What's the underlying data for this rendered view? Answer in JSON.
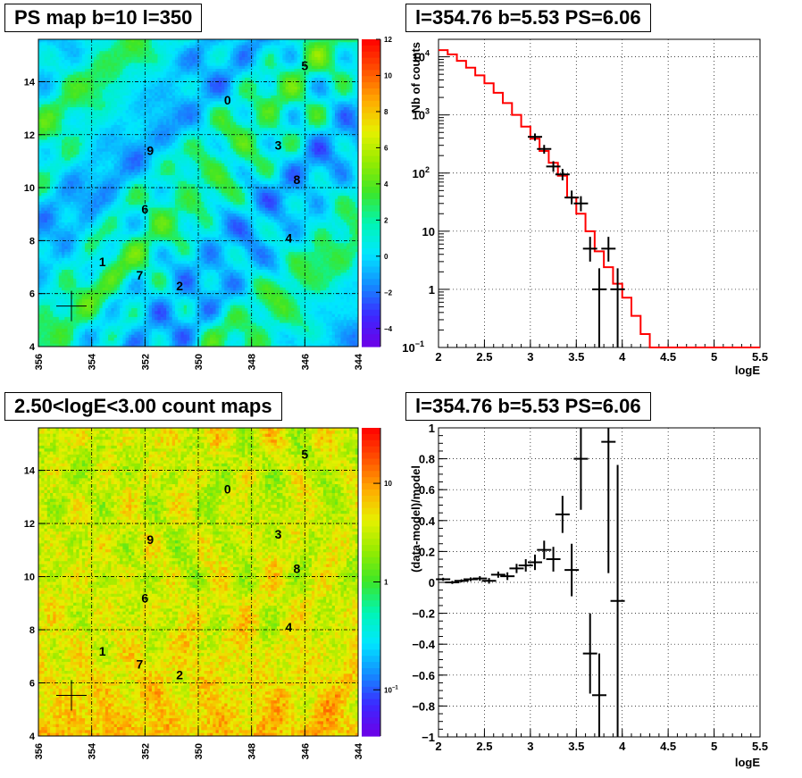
{
  "titles": {
    "ps_map": "PS map b=10 l=350",
    "spectrum": "l=354.76 b=5.53 PS=6.06",
    "count_map": "2.50<logE<3.00 count maps",
    "residual": "l=354.76 b=5.53 PS=6.06"
  },
  "chart_data": [
    {
      "id": "ps_map",
      "type": "heatmap",
      "title": "PS map b=10 l=350",
      "x_ticks": [
        "356",
        "354",
        "352",
        "350",
        "348",
        "346",
        "344"
      ],
      "y_ticks": [
        "4",
        "6",
        "8",
        "10",
        "12",
        "14"
      ],
      "xlim": [
        356,
        344
      ],
      "ylim": [
        4,
        15.6
      ],
      "z_range": [
        -5,
        12
      ],
      "z_ticks": [
        "12",
        "10",
        "8",
        "6",
        "4",
        "2",
        "0",
        "−2",
        "−4"
      ],
      "grid": true,
      "source_labels": [
        {
          "label": "0",
          "l": 348.9,
          "b": 13.3
        },
        {
          "label": "1",
          "l": 353.6,
          "b": 7.2
        },
        {
          "label": "2",
          "l": 350.7,
          "b": 6.3
        },
        {
          "label": "3",
          "l": 347.0,
          "b": 11.6
        },
        {
          "label": "4",
          "l": 346.6,
          "b": 8.1
        },
        {
          "label": "5",
          "l": 346.0,
          "b": 14.6
        },
        {
          "label": "6",
          "l": 352.0,
          "b": 9.2
        },
        {
          "label": "7",
          "l": 352.2,
          "b": 6.7
        },
        {
          "label": "8",
          "l": 346.3,
          "b": 10.3
        },
        {
          "label": "9",
          "l": 351.8,
          "b": 11.4
        }
      ],
      "marker": {
        "l": 354.76,
        "b": 5.53
      }
    },
    {
      "id": "spectrum",
      "type": "line",
      "title": "l=354.76 b=5.53 PS=6.06",
      "xlabel": "logE",
      "ylabel": "Nb of counts",
      "xlim": [
        2,
        5.5
      ],
      "ylim": [
        0.1,
        20000
      ],
      "yscale": "log",
      "x_ticks": [
        "2",
        "2.5",
        "3",
        "3.5",
        "4",
        "4.5",
        "5",
        "5.5"
      ],
      "y_ticks": [
        {
          "v": 0.1,
          "label": "10",
          "exp": "−1"
        },
        {
          "v": 1,
          "label": "1",
          "exp": ""
        },
        {
          "v": 10,
          "label": "10",
          "exp": ""
        },
        {
          "v": 100,
          "label": "10",
          "exp": "2"
        },
        {
          "v": 1000,
          "label": "10",
          "exp": "3"
        },
        {
          "v": 10000,
          "label": "10",
          "exp": "4"
        }
      ],
      "grid": true,
      "series": [
        {
          "name": "model",
          "kind": "step",
          "bin_edges": [
            2.0,
            2.1,
            2.2,
            2.3,
            2.4,
            2.5,
            2.6,
            2.7,
            2.8,
            2.9,
            3.0,
            3.1,
            3.2,
            3.3,
            3.4,
            3.5,
            3.6,
            3.7,
            3.8,
            3.9,
            4.0,
            4.1,
            4.2,
            4.3,
            4.4,
            4.5,
            4.6,
            4.7,
            4.8,
            4.9,
            5.0,
            5.1,
            5.2,
            5.3,
            5.4,
            5.5
          ],
          "values": [
            13000,
            11000,
            8500,
            6500,
            4800,
            3500,
            2400,
            1600,
            1000,
            630,
            390,
            240,
            150,
            90,
            38,
            20,
            10,
            4.5,
            2.4,
            1.25,
            0.72,
            0.35,
            0.17,
            0.1,
            0.1,
            0.1,
            0.1,
            0.1,
            0.1,
            0.1,
            0.1,
            0.1,
            0.1,
            0.1,
            0.1
          ]
        },
        {
          "name": "data",
          "kind": "points",
          "points": [
            {
              "x": 3.05,
              "y": 420,
              "lo": 360,
              "hi": 480
            },
            {
              "x": 3.15,
              "y": 260,
              "lo": 215,
              "hi": 305
            },
            {
              "x": 3.25,
              "y": 130,
              "lo": 105,
              "hi": 160
            },
            {
              "x": 3.35,
              "y": 95,
              "lo": 75,
              "hi": 118
            },
            {
              "x": 3.45,
              "y": 38,
              "lo": 29,
              "hi": 50
            },
            {
              "x": 3.55,
              "y": 30,
              "lo": 22,
              "hi": 40
            },
            {
              "x": 3.65,
              "y": 5,
              "lo": 3,
              "hi": 8
            },
            {
              "x": 3.75,
              "y": 1,
              "lo": 0.1,
              "hi": 2.3
            },
            {
              "x": 3.85,
              "y": 5,
              "lo": 3,
              "hi": 8
            },
            {
              "x": 3.95,
              "y": 1,
              "lo": 0.1,
              "hi": 2.3
            }
          ]
        }
      ]
    },
    {
      "id": "count_map",
      "type": "heatmap",
      "title": "2.50<logE<3.00 count maps",
      "x_ticks": [
        "356",
        "354",
        "352",
        "350",
        "348",
        "346",
        "344"
      ],
      "y_ticks": [
        "4",
        "6",
        "8",
        "10",
        "12",
        "14"
      ],
      "xlim": [
        356,
        344
      ],
      "ylim": [
        4,
        15.6
      ],
      "zscale": "log",
      "z_ticks": [
        {
          "label": "10",
          "exp": ""
        },
        {
          "label": "1",
          "exp": ""
        },
        {
          "label": "10",
          "exp": "−1"
        }
      ],
      "grid": true,
      "source_labels": [
        {
          "label": "0",
          "l": 348.9,
          "b": 13.3
        },
        {
          "label": "1",
          "l": 353.6,
          "b": 7.2
        },
        {
          "label": "2",
          "l": 350.7,
          "b": 6.3
        },
        {
          "label": "3",
          "l": 347.0,
          "b": 11.6
        },
        {
          "label": "4",
          "l": 346.6,
          "b": 8.1
        },
        {
          "label": "5",
          "l": 346.0,
          "b": 14.6
        },
        {
          "label": "6",
          "l": 352.0,
          "b": 9.2
        },
        {
          "label": "7",
          "l": 352.2,
          "b": 6.7
        },
        {
          "label": "8",
          "l": 346.3,
          "b": 10.3
        },
        {
          "label": "9",
          "l": 351.8,
          "b": 11.4
        }
      ],
      "marker": {
        "l": 354.76,
        "b": 5.53
      }
    },
    {
      "id": "residual",
      "type": "scatter",
      "title": "l=354.76 b=5.53 PS=6.06",
      "xlabel": "logE",
      "ylabel": "(data-model)/model",
      "xlim": [
        2,
        5.5
      ],
      "ylim": [
        -1,
        1
      ],
      "x_ticks": [
        "2",
        "2.5",
        "3",
        "3.5",
        "4",
        "4.5",
        "5",
        "5.5"
      ],
      "y_ticks": [
        "−1",
        "−0.8",
        "−0.6",
        "−0.4",
        "−0.2",
        "0",
        "0.2",
        "0.4",
        "0.6",
        "0.8",
        "1"
      ],
      "grid": true,
      "points": [
        {
          "x": 2.05,
          "y": 0.02,
          "err": 0.01
        },
        {
          "x": 2.15,
          "y": 0.0,
          "err": 0.01
        },
        {
          "x": 2.25,
          "y": 0.01,
          "err": 0.01
        },
        {
          "x": 2.35,
          "y": 0.02,
          "err": 0.012
        },
        {
          "x": 2.45,
          "y": 0.025,
          "err": 0.015
        },
        {
          "x": 2.55,
          "y": 0.01,
          "err": 0.018
        },
        {
          "x": 2.65,
          "y": 0.05,
          "err": 0.02
        },
        {
          "x": 2.75,
          "y": 0.04,
          "err": 0.025
        },
        {
          "x": 2.85,
          "y": 0.09,
          "err": 0.03
        },
        {
          "x": 2.95,
          "y": 0.11,
          "err": 0.04
        },
        {
          "x": 3.05,
          "y": 0.13,
          "err": 0.05
        },
        {
          "x": 3.15,
          "y": 0.21,
          "err": 0.06
        },
        {
          "x": 3.25,
          "y": 0.15,
          "err": 0.08
        },
        {
          "x": 3.35,
          "y": 0.44,
          "err": 0.12
        },
        {
          "x": 3.45,
          "y": 0.08,
          "err": 0.17
        },
        {
          "x": 3.55,
          "y": 0.8,
          "err": 0.33
        },
        {
          "x": 3.65,
          "y": -0.46,
          "err": 0.26
        },
        {
          "x": 3.75,
          "y": -0.73,
          "err": 0.27
        },
        {
          "x": 3.85,
          "y": 0.91,
          "err": 0.85
        },
        {
          "x": 3.95,
          "y": -0.12,
          "err": 0.88
        }
      ]
    }
  ]
}
